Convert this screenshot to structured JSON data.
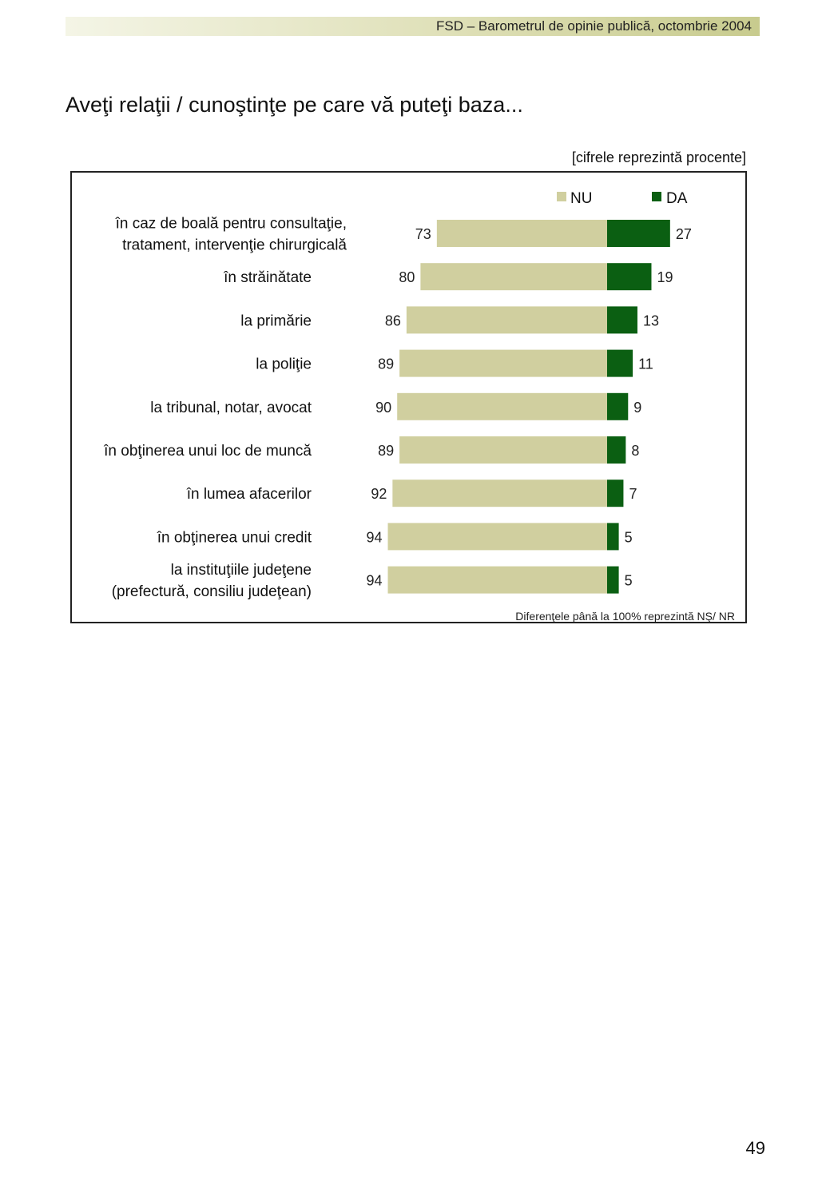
{
  "header": {
    "text": "FSD  –  Barometrul de opinie publică, octombrie 2004"
  },
  "title": "Aveţi relaţii / cunoştinţe pe care vă puteţi baza...",
  "unit_note": "[cifrele reprezintă procente]",
  "page_number": "49",
  "colors": {
    "nu": "#d0cf9f",
    "da": "#0b5f12",
    "header_gradient_end": "#c8cb8e"
  },
  "chart_data": {
    "type": "bar",
    "orientation": "horizontal-diverging",
    "title": "Aveţi relaţii / cunoştinţe pe care vă puteţi baza...",
    "legend_position": "top-right",
    "categories": [
      [
        "în caz de boală pentru consultaţie,",
        "tratament, intervenţie chirurgicală"
      ],
      [
        "în străinătate"
      ],
      [
        "la primărie"
      ],
      [
        "la poliţie"
      ],
      [
        "la tribunal, notar, avocat"
      ],
      [
        "în obţinerea unui loc de muncă"
      ],
      [
        "în lumea afacerilor"
      ],
      [
        "în obţinerea unui credit"
      ],
      [
        "la instituţiile judeţene",
        "(prefectură, consiliu judeţean)"
      ]
    ],
    "series": [
      {
        "name": "NU",
        "color": "#d0cf9f",
        "values": [
          73,
          80,
          86,
          89,
          90,
          89,
          92,
          94,
          94
        ]
      },
      {
        "name": "DA",
        "color": "#0b5f12",
        "values": [
          27,
          19,
          13,
          11,
          9,
          8,
          7,
          5,
          5
        ]
      }
    ],
    "footnote": "Diferenţele până la 100% reprezintă NŞ/ NR"
  }
}
